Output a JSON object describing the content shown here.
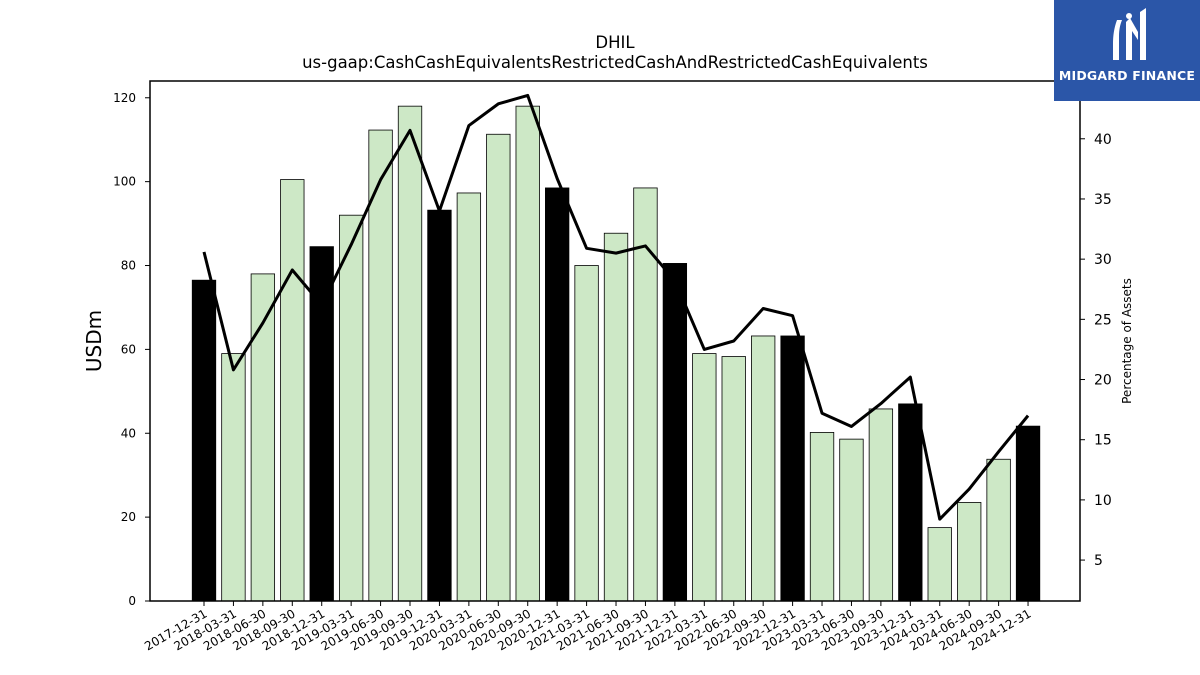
{
  "chart_data": {
    "type": "bar",
    "title": "DHIL",
    "subtitle": "us-gaap:CashCashEquivalentsRestrictedCashAndRestrictedCashEquivalents",
    "ylabel": "USDm",
    "y2label": "Percentage of Assets",
    "ylim": [
      0,
      124
    ],
    "y2lim": [
      1.6,
      44.8
    ],
    "yticks": [
      0,
      20,
      40,
      60,
      80,
      100,
      120
    ],
    "y2ticks": [
      5,
      10,
      15,
      20,
      25,
      30,
      35,
      40
    ],
    "categories": [
      "2017-12-31",
      "2018-03-31",
      "2018-06-30",
      "2018-09-30",
      "2018-12-31",
      "2019-03-31",
      "2019-06-30",
      "2019-09-30",
      "2019-12-31",
      "2020-03-31",
      "2020-06-30",
      "2020-09-30",
      "2020-12-31",
      "2021-03-31",
      "2021-06-30",
      "2021-09-30",
      "2021-12-31",
      "2022-03-31",
      "2022-06-30",
      "2022-09-30",
      "2022-12-31",
      "2023-03-31",
      "2023-06-30",
      "2023-09-30",
      "2023-12-31",
      "2024-03-31",
      "2024-06-30",
      "2024-09-30",
      "2024-12-31"
    ],
    "series": [
      {
        "kind": "bar",
        "values": [
          76.5,
          59,
          78,
          100.5,
          84.5,
          92,
          112.3,
          118,
          93.2,
          97.3,
          111.3,
          118,
          98.5,
          80,
          87.7,
          98.5,
          80.5,
          59,
          58.3,
          63.2,
          63.2,
          40.2,
          38.6,
          45.8,
          47,
          17.5,
          23.5,
          33.8,
          41.7
        ],
        "year_end_color": "#000000",
        "quarter_color": "#cde8c6"
      },
      {
        "kind": "line",
        "axis": "right",
        "color": "#000000",
        "values": [
          30.6,
          20.8,
          24.7,
          29.1,
          26.2,
          31.2,
          36.6,
          40.7,
          34.0,
          41.1,
          42.9,
          43.6,
          36.7,
          30.9,
          30.5,
          31.1,
          28.2,
          22.5,
          23.2,
          25.9,
          25.3,
          17.2,
          16.1,
          18.0,
          20.2,
          8.4,
          10.9,
          14.0,
          17.0
        ]
      }
    ],
    "grid": false
  },
  "logo": {
    "text": "MIDGARD FINANCE",
    "color": "#2b56a8"
  }
}
